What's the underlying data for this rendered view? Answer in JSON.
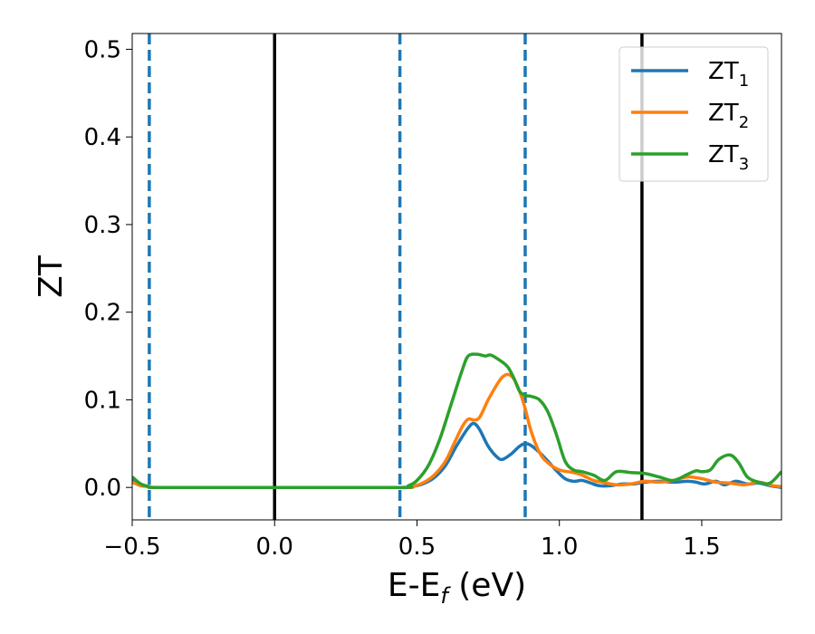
{
  "chart_data": {
    "type": "line",
    "xlabel": "E-E",
    "xlabel_sub": "f",
    "xlabel_unit": " (eV)",
    "ylabel": "ZT",
    "xlim": [
      -0.5,
      1.78
    ],
    "ylim": [
      -0.037,
      0.518
    ],
    "x_ticks": [
      -0.5,
      0.0,
      0.5,
      1.0,
      1.5
    ],
    "x_tick_labels": [
      "−0.5",
      "0.0",
      "0.5",
      "1.0",
      "1.5"
    ],
    "y_ticks": [
      0.0,
      0.1,
      0.2,
      0.3,
      0.4,
      0.5
    ],
    "y_tick_labels": [
      "0.0",
      "0.1",
      "0.2",
      "0.3",
      "0.4",
      "0.5"
    ],
    "grid": false,
    "legend_position": "top-right",
    "vlines_solid": [
      0.0,
      1.29
    ],
    "vlines_dashed": [
      -0.44,
      0.44,
      0.88
    ],
    "vline_solid_color": "#000000",
    "vline_dashed_color": "#1f77b4",
    "series": [
      {
        "name": "ZT",
        "sub": "1",
        "color": "#1f77b4",
        "points": [
          [
            -0.5,
            0.008
          ],
          [
            -0.47,
            0.003
          ],
          [
            -0.44,
            0.001
          ],
          [
            -0.4,
            0.0
          ],
          [
            0.0,
            0.0
          ],
          [
            0.44,
            0.0
          ],
          [
            0.48,
            0.001
          ],
          [
            0.52,
            0.004
          ],
          [
            0.56,
            0.011
          ],
          [
            0.6,
            0.025
          ],
          [
            0.64,
            0.048
          ],
          [
            0.68,
            0.068
          ],
          [
            0.7,
            0.073
          ],
          [
            0.72,
            0.066
          ],
          [
            0.75,
            0.047
          ],
          [
            0.78,
            0.035
          ],
          [
            0.8,
            0.032
          ],
          [
            0.83,
            0.038
          ],
          [
            0.86,
            0.047
          ],
          [
            0.88,
            0.05
          ],
          [
            0.9,
            0.048
          ],
          [
            0.93,
            0.04
          ],
          [
            0.96,
            0.03
          ],
          [
            0.99,
            0.019
          ],
          [
            1.02,
            0.01
          ],
          [
            1.05,
            0.007
          ],
          [
            1.08,
            0.008
          ],
          [
            1.11,
            0.005
          ],
          [
            1.14,
            0.002
          ],
          [
            1.18,
            0.002
          ],
          [
            1.22,
            0.004
          ],
          [
            1.26,
            0.004
          ],
          [
            1.3,
            0.006
          ],
          [
            1.35,
            0.007
          ],
          [
            1.4,
            0.006
          ],
          [
            1.45,
            0.007
          ],
          [
            1.48,
            0.006
          ],
          [
            1.51,
            0.004
          ],
          [
            1.55,
            0.007
          ],
          [
            1.58,
            0.003
          ],
          [
            1.62,
            0.007
          ],
          [
            1.66,
            0.004
          ],
          [
            1.7,
            0.005
          ],
          [
            1.74,
            0.002
          ],
          [
            1.78,
            0.0
          ]
        ]
      },
      {
        "name": "ZT",
        "sub": "2",
        "color": "#ff7f0e",
        "points": [
          [
            -0.5,
            0.006
          ],
          [
            -0.47,
            0.002
          ],
          [
            -0.44,
            0.001
          ],
          [
            -0.4,
            0.0
          ],
          [
            0.0,
            0.0
          ],
          [
            0.44,
            0.0
          ],
          [
            0.48,
            0.001
          ],
          [
            0.52,
            0.005
          ],
          [
            0.56,
            0.014
          ],
          [
            0.6,
            0.03
          ],
          [
            0.63,
            0.05
          ],
          [
            0.66,
            0.07
          ],
          [
            0.68,
            0.078
          ],
          [
            0.7,
            0.077
          ],
          [
            0.72,
            0.08
          ],
          [
            0.75,
            0.1
          ],
          [
            0.78,
            0.117
          ],
          [
            0.8,
            0.126
          ],
          [
            0.82,
            0.129
          ],
          [
            0.84,
            0.124
          ],
          [
            0.86,
            0.11
          ],
          [
            0.88,
            0.09
          ],
          [
            0.9,
            0.065
          ],
          [
            0.93,
            0.04
          ],
          [
            0.96,
            0.028
          ],
          [
            1.0,
            0.02
          ],
          [
            1.05,
            0.017
          ],
          [
            1.08,
            0.014
          ],
          [
            1.12,
            0.008
          ],
          [
            1.15,
            0.006
          ],
          [
            1.2,
            0.003
          ],
          [
            1.25,
            0.004
          ],
          [
            1.3,
            0.007
          ],
          [
            1.35,
            0.006
          ],
          [
            1.4,
            0.008
          ],
          [
            1.45,
            0.012
          ],
          [
            1.5,
            0.01
          ],
          [
            1.55,
            0.006
          ],
          [
            1.6,
            0.005
          ],
          [
            1.65,
            0.003
          ],
          [
            1.7,
            0.006
          ],
          [
            1.75,
            0.002
          ],
          [
            1.78,
            0.001
          ]
        ]
      },
      {
        "name": "ZT",
        "sub": "3",
        "color": "#2ca02c",
        "points": [
          [
            -0.5,
            0.012
          ],
          [
            -0.47,
            0.004
          ],
          [
            -0.44,
            0.001
          ],
          [
            -0.4,
            0.0
          ],
          [
            0.0,
            0.0
          ],
          [
            0.44,
            0.0
          ],
          [
            0.47,
            0.002
          ],
          [
            0.5,
            0.008
          ],
          [
            0.54,
            0.025
          ],
          [
            0.58,
            0.055
          ],
          [
            0.62,
            0.095
          ],
          [
            0.66,
            0.135
          ],
          [
            0.68,
            0.15
          ],
          [
            0.71,
            0.152
          ],
          [
            0.74,
            0.15
          ],
          [
            0.76,
            0.151
          ],
          [
            0.8,
            0.143
          ],
          [
            0.82,
            0.137
          ],
          [
            0.84,
            0.125
          ],
          [
            0.86,
            0.11
          ],
          [
            0.88,
            0.105
          ],
          [
            0.9,
            0.104
          ],
          [
            0.93,
            0.1
          ],
          [
            0.96,
            0.086
          ],
          [
            0.99,
            0.06
          ],
          [
            1.02,
            0.03
          ],
          [
            1.05,
            0.02
          ],
          [
            1.08,
            0.018
          ],
          [
            1.12,
            0.014
          ],
          [
            1.16,
            0.008
          ],
          [
            1.2,
            0.018
          ],
          [
            1.25,
            0.017
          ],
          [
            1.3,
            0.016
          ],
          [
            1.35,
            0.012
          ],
          [
            1.4,
            0.008
          ],
          [
            1.45,
            0.015
          ],
          [
            1.48,
            0.019
          ],
          [
            1.5,
            0.018
          ],
          [
            1.53,
            0.02
          ],
          [
            1.56,
            0.032
          ],
          [
            1.6,
            0.037
          ],
          [
            1.63,
            0.028
          ],
          [
            1.66,
            0.012
          ],
          [
            1.7,
            0.006
          ],
          [
            1.74,
            0.005
          ],
          [
            1.78,
            0.018
          ]
        ]
      }
    ]
  }
}
